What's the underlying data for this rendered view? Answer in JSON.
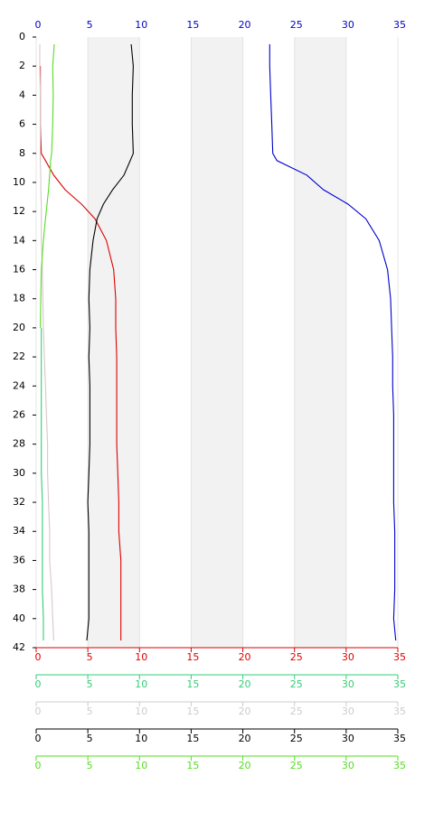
{
  "chart_data": {
    "type": "line",
    "y": [
      0.5,
      2,
      4,
      6,
      8,
      8.5,
      9.5,
      10.5,
      11.5,
      12.5,
      14,
      16,
      18,
      20,
      22,
      24,
      26,
      28,
      30,
      32,
      34,
      36,
      38,
      40,
      41.5
    ],
    "ylim": [
      0,
      42
    ],
    "yticks": [
      0,
      2,
      4,
      6,
      8,
      10,
      12,
      14,
      16,
      18,
      20,
      22,
      24,
      26,
      28,
      30,
      32,
      34,
      36,
      38,
      40,
      42
    ],
    "inverted_y": true,
    "bands": true,
    "grid": true,
    "x_axes": [
      {
        "color": "#0000cc",
        "xlim": [
          0,
          35
        ],
        "xticks": [
          0,
          5,
          10,
          15,
          20,
          25,
          30,
          35
        ]
      },
      {
        "color": "#dd0000",
        "xlim": [
          0,
          35
        ],
        "xticks": [
          0,
          5,
          10,
          15,
          20,
          25,
          30,
          35
        ]
      },
      {
        "color": "#33cc77",
        "xlim": [
          0,
          35
        ],
        "xticks": [
          0,
          5,
          10,
          15,
          20,
          25,
          30,
          35
        ]
      },
      {
        "color": "#cccccc",
        "xlim": [
          0,
          35
        ],
        "xticks": [
          0,
          5,
          10,
          15,
          20,
          25,
          30,
          35
        ]
      },
      {
        "color": "#000000",
        "xlim": [
          0,
          35
        ],
        "xticks": [
          0,
          5,
          10,
          15,
          20,
          25,
          30,
          35
        ]
      },
      {
        "color": "#55dd22",
        "xlim": [
          0,
          35
        ],
        "xticks": [
          0,
          5,
          10,
          15,
          20,
          25,
          30,
          35
        ]
      }
    ],
    "series": [
      {
        "color": "#0000cc",
        "values": [
          22.6,
          22.6,
          22.7,
          22.8,
          22.9,
          23.3,
          26.2,
          27.8,
          30.2,
          31.9,
          33.2,
          34.0,
          34.3,
          34.4,
          34.5,
          34.5,
          34.6,
          34.6,
          34.6,
          34.6,
          34.7,
          34.7,
          34.7,
          34.6,
          34.8
        ]
      },
      {
        "color": "#dd0000",
        "values": [
          null,
          0.4,
          0.4,
          0.4,
          0.5,
          0.9,
          1.7,
          2.8,
          4.4,
          5.7,
          6.8,
          7.5,
          7.7,
          7.7,
          7.8,
          7.8,
          7.8,
          7.8,
          7.9,
          8.0,
          8.0,
          8.2,
          8.2,
          8.2,
          8.2
        ]
      },
      {
        "color": "#33cc77",
        "values": [
          null,
          null,
          null,
          null,
          null,
          null,
          null,
          null,
          null,
          null,
          null,
          null,
          null,
          0.5,
          0.5,
          0.5,
          0.5,
          0.5,
          0.5,
          0.6,
          0.6,
          0.6,
          0.6,
          0.7,
          0.7
        ]
      },
      {
        "color": "#d8c8c8",
        "values": [
          0.35,
          0.35,
          0.4,
          0.4,
          0.4,
          0.4,
          0.45,
          0.45,
          0.5,
          0.5,
          0.5,
          0.6,
          0.65,
          0.7,
          0.8,
          0.9,
          1.0,
          1.1,
          1.1,
          1.2,
          1.3,
          1.3,
          1.5,
          1.6,
          1.7
        ]
      },
      {
        "color": "#000000",
        "values": [
          9.2,
          9.4,
          9.3,
          9.3,
          9.4,
          9.1,
          8.5,
          7.4,
          6.5,
          5.9,
          5.5,
          5.2,
          5.1,
          5.2,
          5.1,
          5.2,
          5.2,
          5.2,
          5.1,
          5.0,
          5.1,
          5.1,
          5.1,
          5.1,
          4.9
        ]
      },
      {
        "color": "#55dd22",
        "values": [
          1.75,
          1.6,
          1.65,
          1.6,
          1.5,
          1.4,
          1.3,
          1.2,
          1.05,
          0.9,
          0.7,
          0.5,
          0.45,
          0.4,
          null,
          null,
          null,
          null,
          null,
          null,
          null,
          null,
          null,
          null,
          null
        ]
      }
    ]
  }
}
